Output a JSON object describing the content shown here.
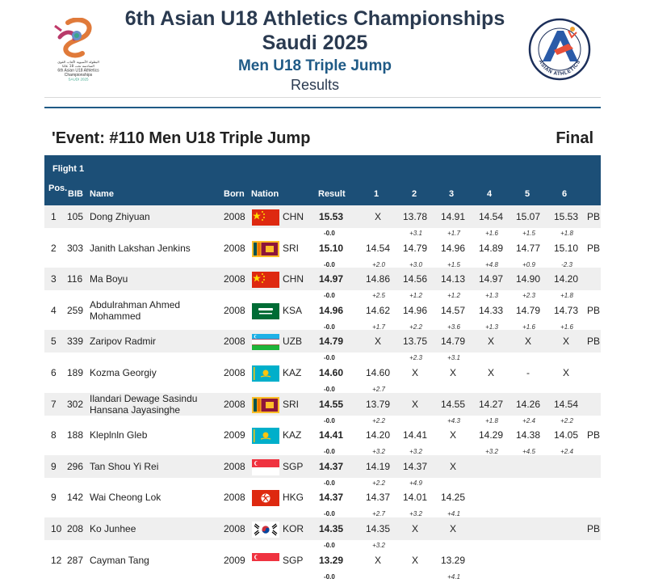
{
  "header": {
    "line1": "6th Asian U18 Athletics Championships",
    "line2": "Saudi 2025",
    "line3": "Men U18 Triple Jump",
    "line4": "Results",
    "logo_left_text": [
      "البطولة الآسيوية لألعاب القوى",
      "السادسة تحت 18 عامًا",
      "6th Asian U18 Athletics",
      "Championships",
      "SAUDI 2025"
    ],
    "logo_right_text": "ASIAN ATHLETICS"
  },
  "event": {
    "title": "'Event: #110 Men U18 Triple Jump",
    "round": "Final"
  },
  "table": {
    "flight": "Flight 1",
    "headers": {
      "pos": "Pos.",
      "bib": "BIB",
      "name": "Name",
      "born": "Born",
      "nation": "Nation",
      "result": "Result",
      "a1": "1",
      "a2": "2",
      "a3": "3",
      "a4": "4",
      "a5": "5",
      "a6": "6"
    },
    "rows": [
      {
        "pos": "1",
        "bib": "105",
        "name": "Dong Zhiyuan",
        "born": "2008",
        "nat": "CHN",
        "result": "15.53",
        "wind": "-0.0",
        "att": [
          "X",
          "13.78",
          "14.91",
          "14.54",
          "15.07",
          "15.53"
        ],
        "aw": [
          "",
          "+3.1",
          "+1.7",
          "+1.6",
          "+1.5",
          "+1.8"
        ],
        "note": "PB"
      },
      {
        "pos": "2",
        "bib": "303",
        "name": "Janith Lakshan Jenkins",
        "born": "2008",
        "nat": "SRI",
        "result": "15.10",
        "wind": "-0.0",
        "att": [
          "14.54",
          "14.79",
          "14.96",
          "14.89",
          "14.77",
          "15.10"
        ],
        "aw": [
          "+2.0",
          "+3.0",
          "+1.5",
          "+4.8",
          "+0.9",
          "-2.3"
        ],
        "note": "PB"
      },
      {
        "pos": "3",
        "bib": "116",
        "name": "Ma Boyu",
        "born": "2008",
        "nat": "CHN",
        "result": "14.97",
        "wind": "-0.0",
        "att": [
          "14.86",
          "14.56",
          "14.13",
          "14.97",
          "14.90",
          "14.20"
        ],
        "aw": [
          "+2.5",
          "+1.2",
          "+1.2",
          "+1.3",
          "+2.3",
          "+1.8"
        ],
        "note": ""
      },
      {
        "pos": "4",
        "bib": "259",
        "name": "Abdulrahman Ahmed Mohammed",
        "born": "2008",
        "nat": "KSA",
        "result": "14.96",
        "wind": "-0.0",
        "att": [
          "14.62",
          "14.96",
          "14.57",
          "14.33",
          "14.79",
          "14.73"
        ],
        "aw": [
          "+1.7",
          "+2.2",
          "+3.6",
          "+1.3",
          "+1.6",
          "+1.6"
        ],
        "note": "PB"
      },
      {
        "pos": "5",
        "bib": "339",
        "name": "Zaripov Radmir",
        "born": "2008",
        "nat": "UZB",
        "result": "14.79",
        "wind": "-0.0",
        "att": [
          "X",
          "13.75",
          "14.79",
          "X",
          "X",
          "X"
        ],
        "aw": [
          "",
          "+2.3",
          "+3.1",
          "",
          "",
          ""
        ],
        "note": "PB"
      },
      {
        "pos": "6",
        "bib": "189",
        "name": "Kozma Georgiy",
        "born": "2008",
        "nat": "KAZ",
        "result": "14.60",
        "wind": "-0.0",
        "att": [
          "14.60",
          "X",
          "X",
          "X",
          "-",
          "X"
        ],
        "aw": [
          "+2.7",
          "",
          "",
          "",
          "",
          ""
        ],
        "note": ""
      },
      {
        "pos": "7",
        "bib": "302",
        "name": "Ilandari Dewage Sasindu Hansana Jayasinghe",
        "born": "2008",
        "nat": "SRI",
        "result": "14.55",
        "wind": "-0.0",
        "att": [
          "13.79",
          "X",
          "14.55",
          "14.27",
          "14.26",
          "14.54"
        ],
        "aw": [
          "+2.2",
          "",
          "+4.3",
          "+1.8",
          "+2.4",
          "+2.2"
        ],
        "note": ""
      },
      {
        "pos": "8",
        "bib": "188",
        "name": "Kleplnln Gleb",
        "born": "2009",
        "nat": "KAZ",
        "result": "14.41",
        "wind": "-0.0",
        "att": [
          "14.20",
          "14.41",
          "X",
          "14.29",
          "14.38",
          "14.05"
        ],
        "aw": [
          "+3.2",
          "+3.2",
          "",
          "+3.2",
          "+4.5",
          "+2.4"
        ],
        "note": "PB"
      },
      {
        "pos": "9",
        "bib": "296",
        "name": "Tan Shou Yi Rei",
        "born": "2008",
        "nat": "SGP",
        "result": "14.37",
        "wind": "-0.0",
        "att": [
          "14.19",
          "14.37",
          "X",
          "",
          "",
          ""
        ],
        "aw": [
          "+2.2",
          "+4.9",
          "",
          "",
          "",
          ""
        ],
        "note": ""
      },
      {
        "pos": "9",
        "bib": "142",
        "name": "Wai Cheong Lok",
        "born": "2008",
        "nat": "HKG",
        "result": "14.37",
        "wind": "-0.0",
        "att": [
          "14.37",
          "14.01",
          "14.25",
          "",
          "",
          ""
        ],
        "aw": [
          "+2.7",
          "+3.2",
          "+4.1",
          "",
          "",
          ""
        ],
        "note": ""
      },
      {
        "pos": "10",
        "bib": "208",
        "name": "Ko Junhee",
        "born": "2008",
        "nat": "KOR",
        "result": "14.35",
        "wind": "-0.0",
        "att": [
          "14.35",
          "X",
          "X",
          "",
          "",
          ""
        ],
        "aw": [
          "+3.2",
          "",
          "",
          "",
          "",
          ""
        ],
        "note": "PB"
      },
      {
        "pos": "12",
        "bib": "287",
        "name": "Cayman Tang",
        "born": "2009",
        "nat": "SGP",
        "result": "13.29",
        "wind": "-0.0",
        "att": [
          "X",
          "X",
          "13.29",
          "",
          "",
          ""
        ],
        "aw": [
          "",
          "",
          "+4.1",
          "",
          "",
          ""
        ],
        "note": ""
      }
    ]
  }
}
